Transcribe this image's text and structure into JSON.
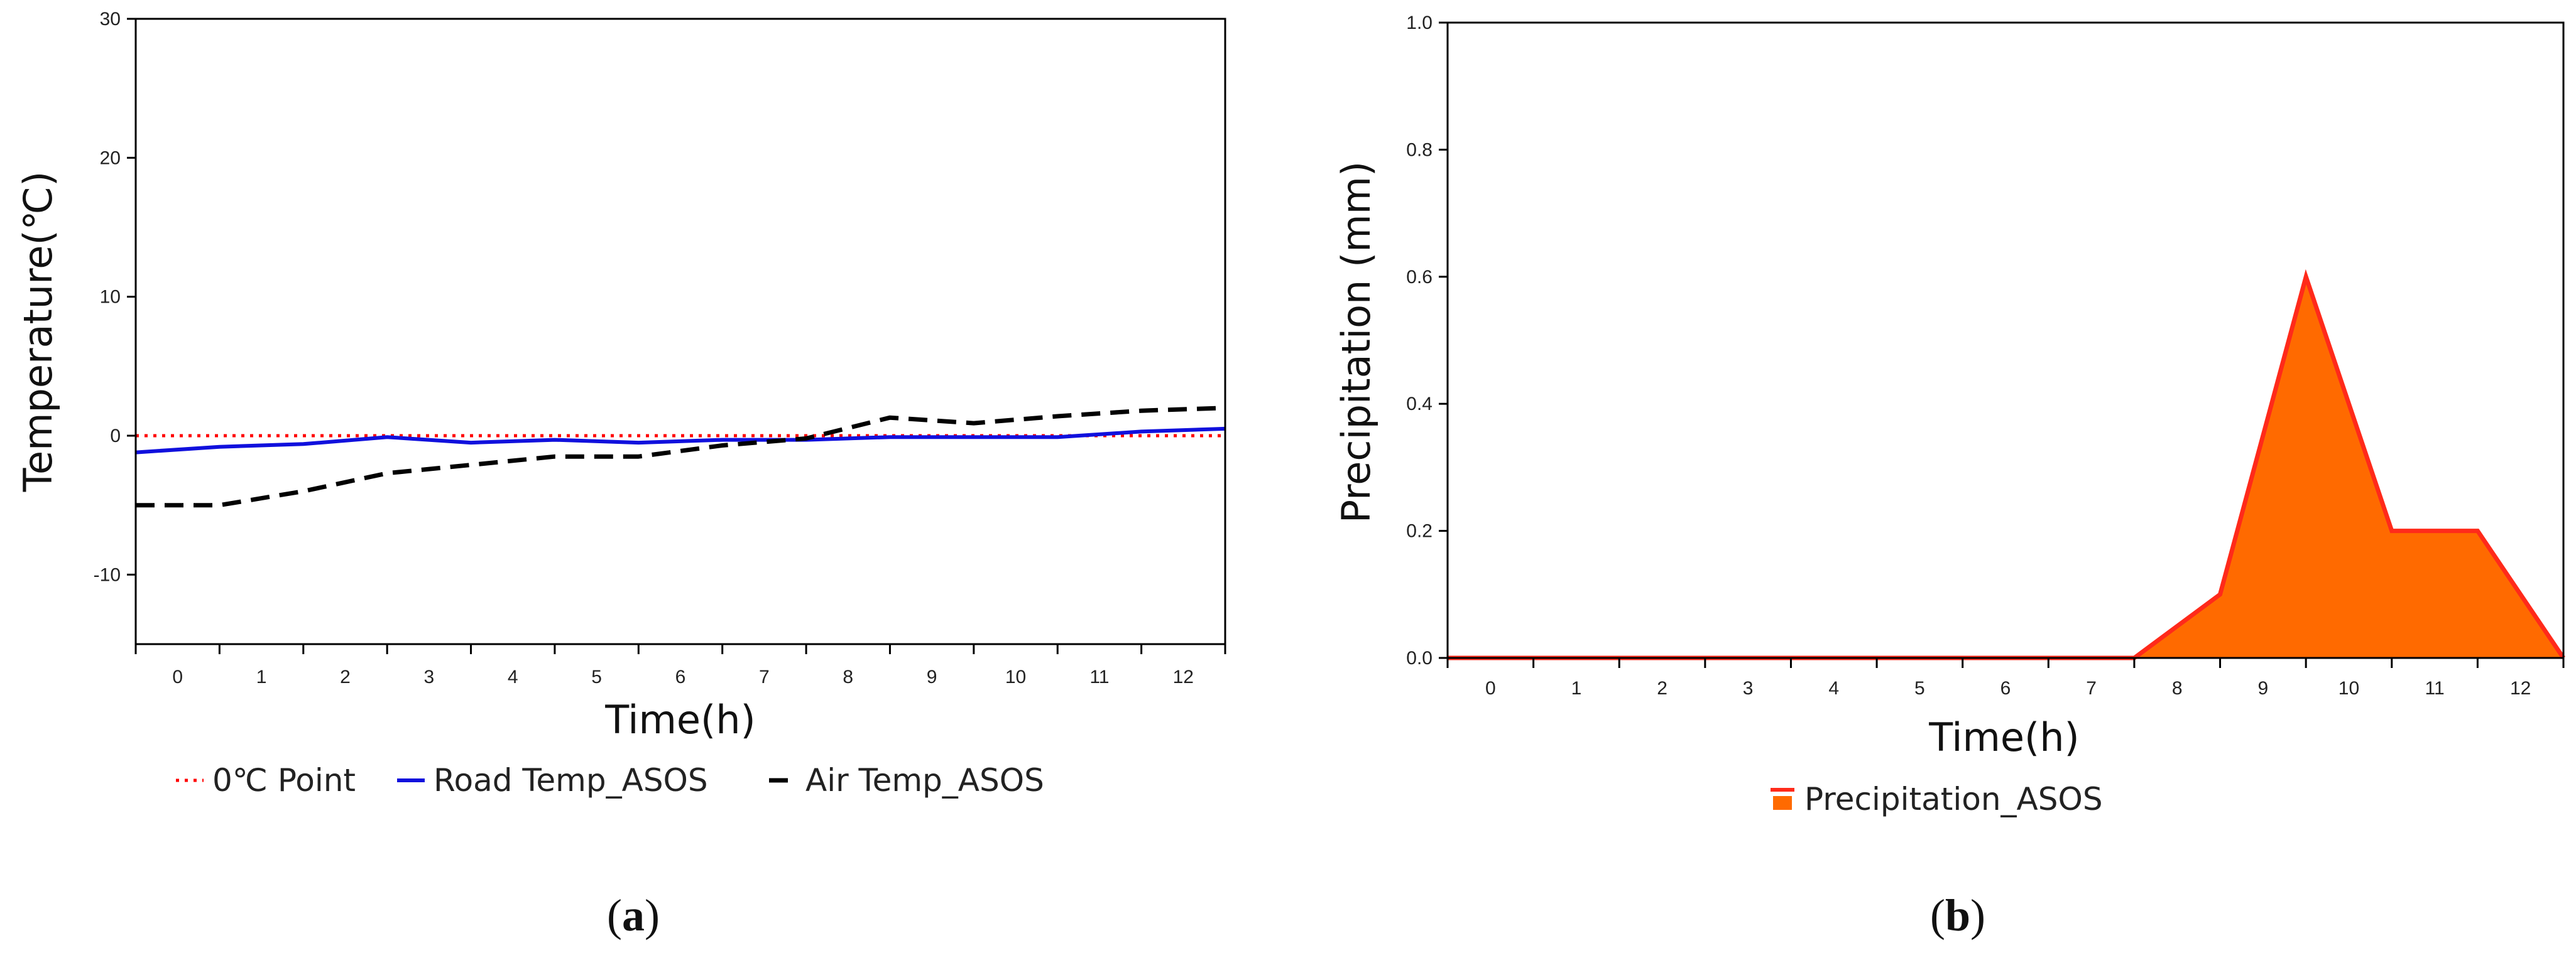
{
  "chart_data": [
    {
      "type": "line",
      "panel_label": "a",
      "xlabel": "Time(h)",
      "ylabel": "Temperature(℃)",
      "categories": [
        "0",
        "1",
        "2",
        "3",
        "4",
        "5",
        "6",
        "7",
        "8",
        "9",
        "10",
        "11",
        "12"
      ],
      "xlim": [
        -0.5,
        12.5
      ],
      "ylim": [
        -15,
        30
      ],
      "yticks": [
        30,
        20,
        10,
        0,
        -10
      ],
      "series": [
        {
          "name": "0℃ Point",
          "color": "#ff0000",
          "style": "dotted",
          "x": [
            -0.5,
            12.5
          ],
          "values": [
            0,
            0
          ]
        },
        {
          "name": "Road Temp_ASOS",
          "color": "#1010dd",
          "style": "solid",
          "x": [
            -0.5,
            0.5,
            1.5,
            2.5,
            3.5,
            4.5,
            5.5,
            6.5,
            7.5,
            8.5,
            9.5,
            10.5,
            11.5,
            12.5
          ],
          "values": [
            -1.2,
            -0.8,
            -0.6,
            -0.1,
            -0.5,
            -0.3,
            -0.5,
            -0.3,
            -0.3,
            -0.1,
            -0.1,
            -0.1,
            0.3,
            0.5
          ]
        },
        {
          "name": "Air Temp_ASOS",
          "color": "#000000",
          "style": "dashed",
          "x": [
            -0.5,
            0.5,
            1.5,
            2.5,
            3.5,
            4.5,
            5.5,
            6.5,
            7.5,
            8.5,
            9.5,
            10.5,
            11.5,
            12.5
          ],
          "values": [
            -5,
            -5,
            -4,
            -2.7,
            -2.1,
            -1.5,
            -1.5,
            -0.7,
            -0.2,
            1.3,
            0.9,
            1.4,
            1.8,
            2
          ]
        }
      ]
    },
    {
      "type": "area",
      "panel_label": "b",
      "xlabel": "Time(h)",
      "ylabel": "Precipitation (mm)",
      "categories": [
        "0",
        "1",
        "2",
        "3",
        "4",
        "5",
        "6",
        "7",
        "8",
        "9",
        "10",
        "11",
        "12"
      ],
      "xlim": [
        -0.5,
        12.5
      ],
      "ylim": [
        0,
        1.0
      ],
      "yticks": [
        "1.0",
        "0.8",
        "0.6",
        "0.4",
        "0.2",
        "0.0"
      ],
      "series": [
        {
          "name": "Precipitation_ASOS",
          "color": "#ff2a1a",
          "fill": "#ff6a00",
          "x": [
            -0.5,
            0.5,
            1.5,
            2.5,
            3.5,
            4.5,
            5.5,
            6.5,
            7.5,
            8.5,
            9.5,
            10.5,
            11.5,
            12.5
          ],
          "values": [
            0,
            0,
            0,
            0,
            0,
            0,
            0,
            0,
            0,
            0.1,
            0.6,
            0.2,
            0.2,
            0
          ]
        }
      ]
    }
  ],
  "legend_a": [
    "0℃ Point",
    "Road Temp_ASOS",
    "Air Temp_ASOS"
  ],
  "legend_b": [
    "Precipitation_ASOS"
  ],
  "captions": {
    "a": {
      "open": "(",
      "letter": "a",
      "close": ")"
    },
    "b": {
      "open": "(",
      "letter": "b",
      "close": ")"
    }
  }
}
